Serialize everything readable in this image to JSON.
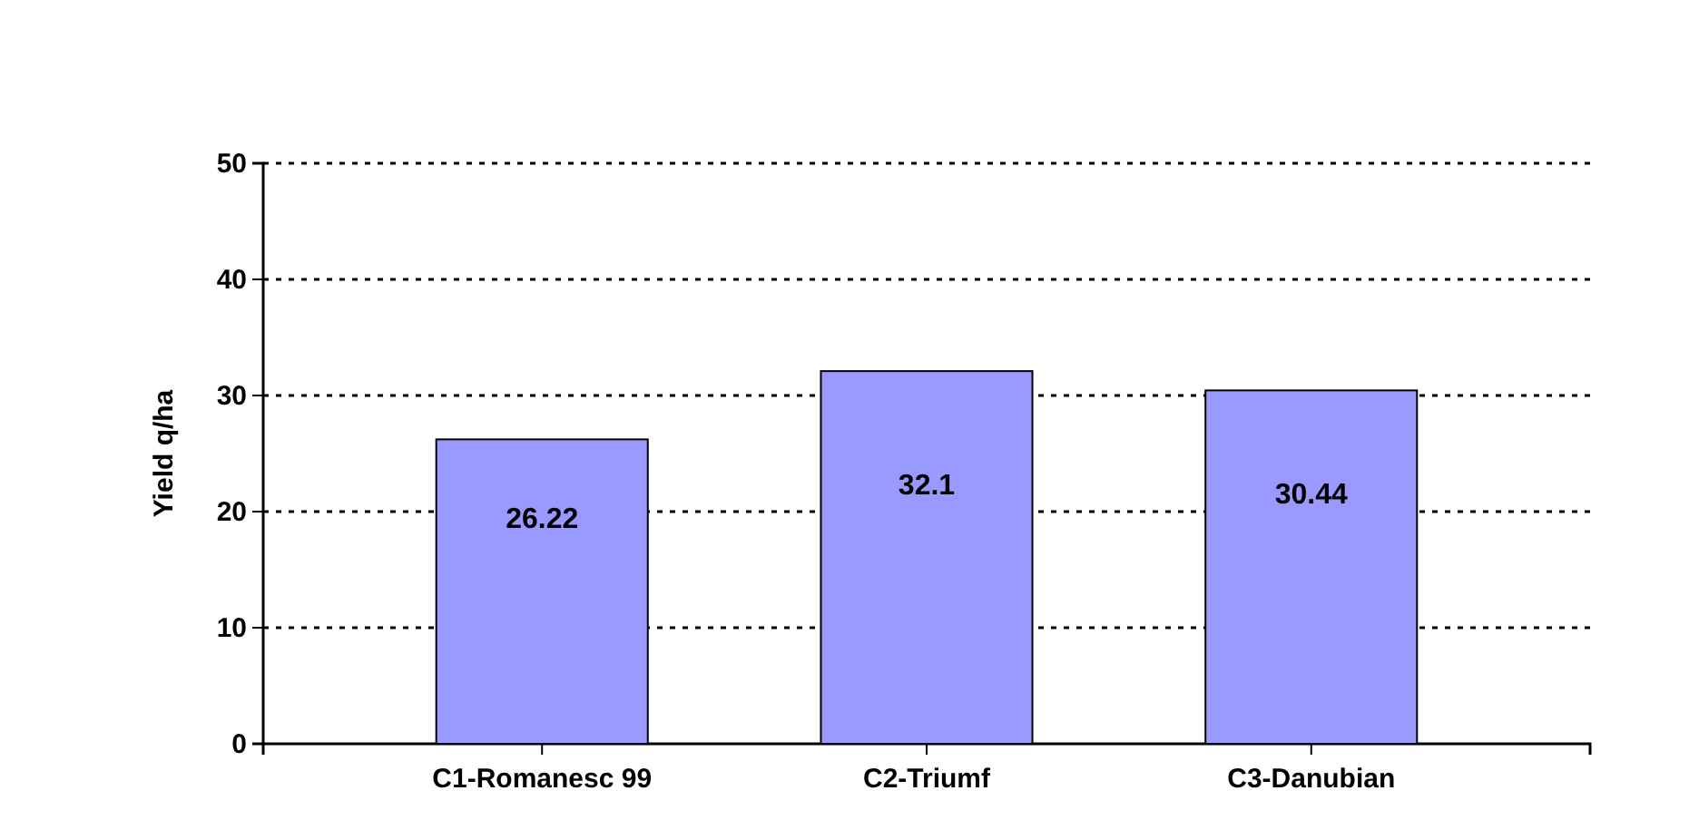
{
  "chart_data": {
    "type": "bar",
    "ylabel": "Yield q/ha",
    "categories": [
      "C1-Romanesc 99",
      "C2-Triumf",
      "C3-Danubian"
    ],
    "values": [
      26.22,
      32.1,
      30.44
    ],
    "color": "#9999ff",
    "ylim": [
      0,
      50
    ],
    "yticks": [
      0,
      10,
      20,
      30,
      40,
      50
    ],
    "grid": "y",
    "data_labels": true
  }
}
